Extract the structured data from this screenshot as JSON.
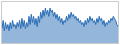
{
  "chart_data": {
    "type": "area",
    "values": [
      35,
      55,
      30,
      50,
      35,
      45,
      30,
      50,
      35,
      55,
      40,
      45,
      35,
      50,
      40,
      55,
      35,
      60,
      40,
      55,
      35,
      50,
      40,
      65,
      45,
      70,
      50,
      65,
      45,
      60,
      40,
      65,
      50,
      75,
      60,
      80,
      65,
      85,
      70,
      80,
      65,
      85,
      75,
      80,
      65,
      75,
      60,
      70,
      55,
      65,
      50,
      60,
      45,
      55,
      50,
      65,
      55,
      70,
      60,
      75,
      65,
      70,
      60,
      65,
      55,
      60,
      50,
      55,
      45,
      50,
      40,
      55,
      45,
      60,
      50,
      65,
      55,
      60,
      50,
      55,
      45,
      60,
      50,
      65,
      55,
      60,
      45,
      55,
      40,
      50,
      45,
      55,
      50,
      60,
      55,
      65,
      60,
      55,
      45,
      40
    ],
    "color": "#2a6db5",
    "xlim": [
      0,
      99
    ],
    "ylim": [
      0,
      100
    ],
    "grid": false,
    "tick_labels": false
  }
}
